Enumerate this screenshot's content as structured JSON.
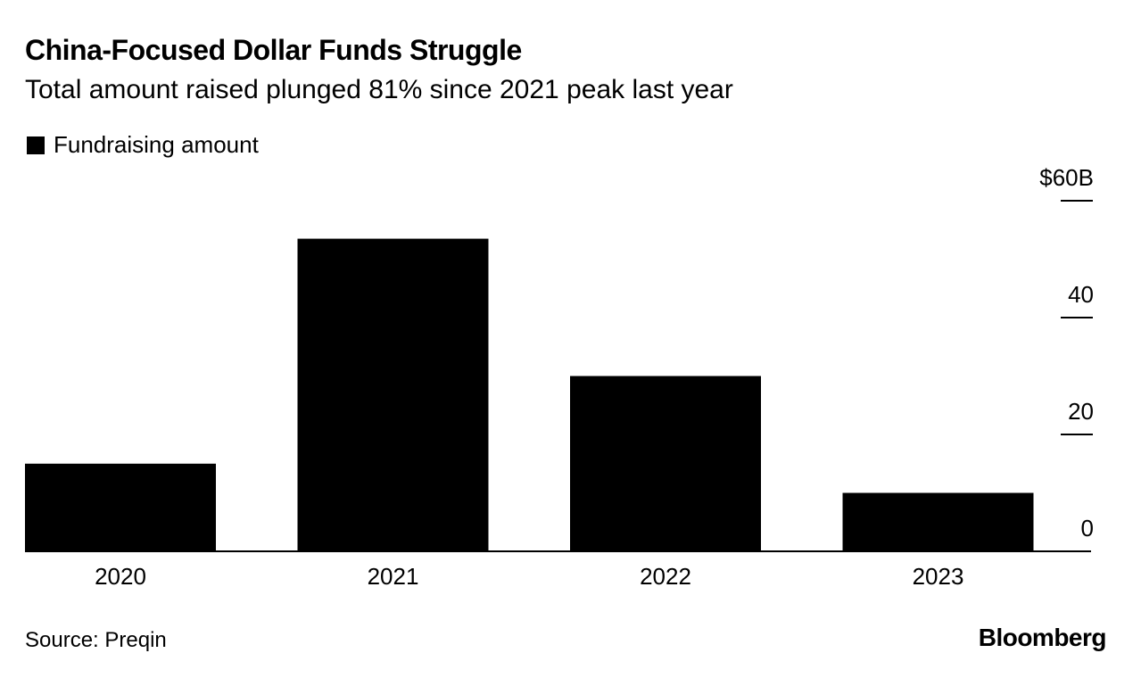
{
  "header": {
    "title": "China-Focused Dollar Funds Struggle",
    "subtitle": "Total amount raised plunged 81% since 2021 peak last year"
  },
  "legend": {
    "label": "Fundraising amount",
    "color": "#000000"
  },
  "footer": {
    "source": "Source: Preqin",
    "brand": "Bloomberg"
  },
  "chart_data": {
    "type": "bar",
    "categories": [
      "2020",
      "2021",
      "2022",
      "2023"
    ],
    "series": [
      {
        "name": "Fundraising amount",
        "values": [
          15,
          53.5,
          30,
          10
        ],
        "color": "#000000"
      }
    ],
    "ylim": [
      0,
      60
    ],
    "yticks": [
      0,
      20,
      40,
      60
    ],
    "ytick_labels": [
      "0",
      "20",
      "40",
      "$60B"
    ],
    "yaxis_side": "right",
    "grid": false
  }
}
